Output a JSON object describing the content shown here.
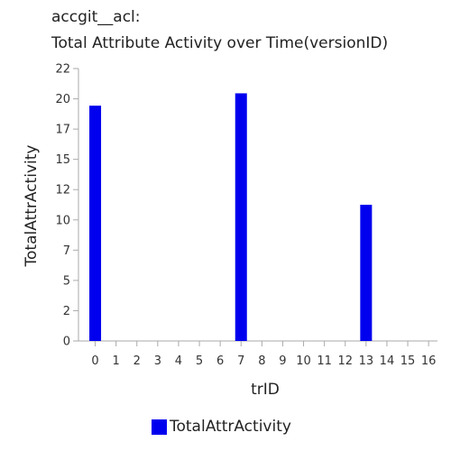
{
  "colors": {
    "bar": "#0000ee",
    "axis": "#aaaaaa",
    "text": "#222222"
  },
  "chart_data": {
    "type": "bar",
    "title_lines": [
      "accgit__acl:",
      "Total Attribute Activity over Time(versionID)"
    ],
    "xlabel": "trID",
    "ylabel": "TotalAttrActivity",
    "categories": [
      "0",
      "1",
      "2",
      "3",
      "4",
      "5",
      "6",
      "7",
      "8",
      "9",
      "10",
      "11",
      "12",
      "13",
      "14",
      "15",
      "16"
    ],
    "series": [
      {
        "name": "TotalAttrActivity",
        "values": [
          19,
          0,
          0,
          0,
          0,
          0,
          0,
          20,
          0,
          0,
          0,
          0,
          0,
          11,
          0,
          0,
          0
        ]
      }
    ],
    "ylim": [
      0,
      22
    ],
    "yticks": [
      "0",
      "2",
      "5",
      "7",
      "10",
      "12",
      "15",
      "17",
      "20",
      "22"
    ],
    "grid": false,
    "legend": "bottom"
  }
}
